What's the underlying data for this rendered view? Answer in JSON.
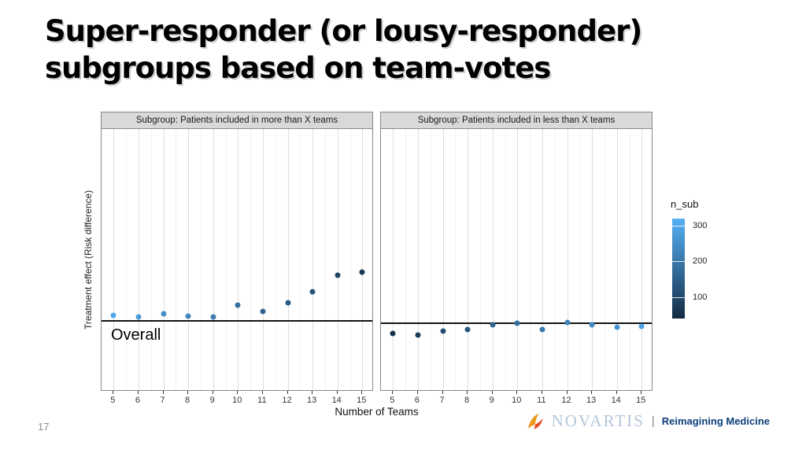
{
  "slide": {
    "title_line1": "Super-responder (or lousy-responder)",
    "title_line2": "subgroups based on team-votes",
    "page_number": "17",
    "footer": {
      "brand": "NOVARTIS",
      "divider": "|",
      "tagline": "Reimagining Medicine"
    }
  },
  "figure": {
    "y_axis_label": "Treatment effect (Risk difference)",
    "x_axis_label": "Number of Teams",
    "overall_label": "Overall",
    "legend": {
      "title": "n_sub",
      "tick_values": [
        300,
        200,
        100
      ],
      "value_range": [
        40,
        320
      ],
      "color_low": "#132B43",
      "color_high": "#56B1F7"
    }
  },
  "chart_data": [
    {
      "type": "scatter",
      "title": "Subgroup: Patients included in more than X teams",
      "xlabel": "Number of Teams",
      "ylabel": "Treatment effect (Risk difference)",
      "x": [
        5,
        6,
        7,
        8,
        9,
        10,
        11,
        12,
        13,
        14,
        15
      ],
      "y_relative_to_overall": [
        0.006,
        0.004,
        0.008,
        0.005,
        0.004,
        0.019,
        0.011,
        0.022,
        0.036,
        0.057,
        0.061
      ],
      "color_values_n_sub": [
        300,
        270,
        250,
        230,
        210,
        180,
        160,
        140,
        120,
        90,
        70
      ],
      "reference_line_label": "Overall",
      "xlim": [
        4.5,
        15.5
      ],
      "grid": "vertical-only",
      "legend_title": "n_sub"
    },
    {
      "type": "scatter",
      "title": "Subgroup: Patients included in less than X teams",
      "xlabel": "Number of Teams",
      "ylabel": "Treatment effect (Risk difference)",
      "x": [
        5,
        6,
        7,
        8,
        9,
        10,
        11,
        12,
        13,
        14,
        15
      ],
      "y_relative_to_overall": [
        -0.014,
        -0.016,
        -0.011,
        -0.009,
        -0.003,
        -0.001,
        -0.009,
        0.0,
        -0.003,
        -0.006,
        -0.005
      ],
      "color_values_n_sub": [
        60,
        80,
        110,
        130,
        160,
        180,
        200,
        220,
        240,
        260,
        290
      ],
      "reference_line_label": "Overall",
      "xlim": [
        4.5,
        15.5
      ],
      "grid": "vertical-only",
      "legend_title": "n_sub"
    }
  ]
}
